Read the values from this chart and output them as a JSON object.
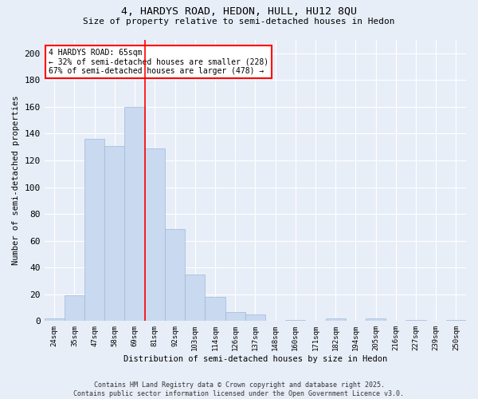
{
  "title1": "4, HARDYS ROAD, HEDON, HULL, HU12 8QU",
  "title2": "Size of property relative to semi-detached houses in Hedon",
  "xlabel": "Distribution of semi-detached houses by size in Hedon",
  "ylabel": "Number of semi-detached properties",
  "categories": [
    "24sqm",
    "35sqm",
    "47sqm",
    "58sqm",
    "69sqm",
    "81sqm",
    "92sqm",
    "103sqm",
    "114sqm",
    "126sqm",
    "137sqm",
    "148sqm",
    "160sqm",
    "171sqm",
    "182sqm",
    "194sqm",
    "205sqm",
    "216sqm",
    "227sqm",
    "239sqm",
    "250sqm"
  ],
  "values": [
    2,
    19,
    136,
    131,
    160,
    129,
    69,
    35,
    18,
    7,
    5,
    0,
    1,
    0,
    2,
    0,
    2,
    0,
    1,
    0,
    1
  ],
  "bar_color": "#c8d9f0",
  "bar_edge_color": "#a0b8d8",
  "vline_color": "red",
  "vline_idx": 5,
  "annotation_title": "4 HARDYS ROAD: 65sqm",
  "annotation_line2": "← 32% of semi-detached houses are smaller (228)",
  "annotation_line3": "67% of semi-detached houses are larger (478) →",
  "annotation_box_color": "red",
  "ylim": [
    0,
    210
  ],
  "yticks": [
    0,
    20,
    40,
    60,
    80,
    100,
    120,
    140,
    160,
    180,
    200
  ],
  "footer": "Contains HM Land Registry data © Crown copyright and database right 2025.\nContains public sector information licensed under the Open Government Licence v3.0.",
  "bg_color": "#e8eef8",
  "plot_bg_color": "#e8eef8"
}
